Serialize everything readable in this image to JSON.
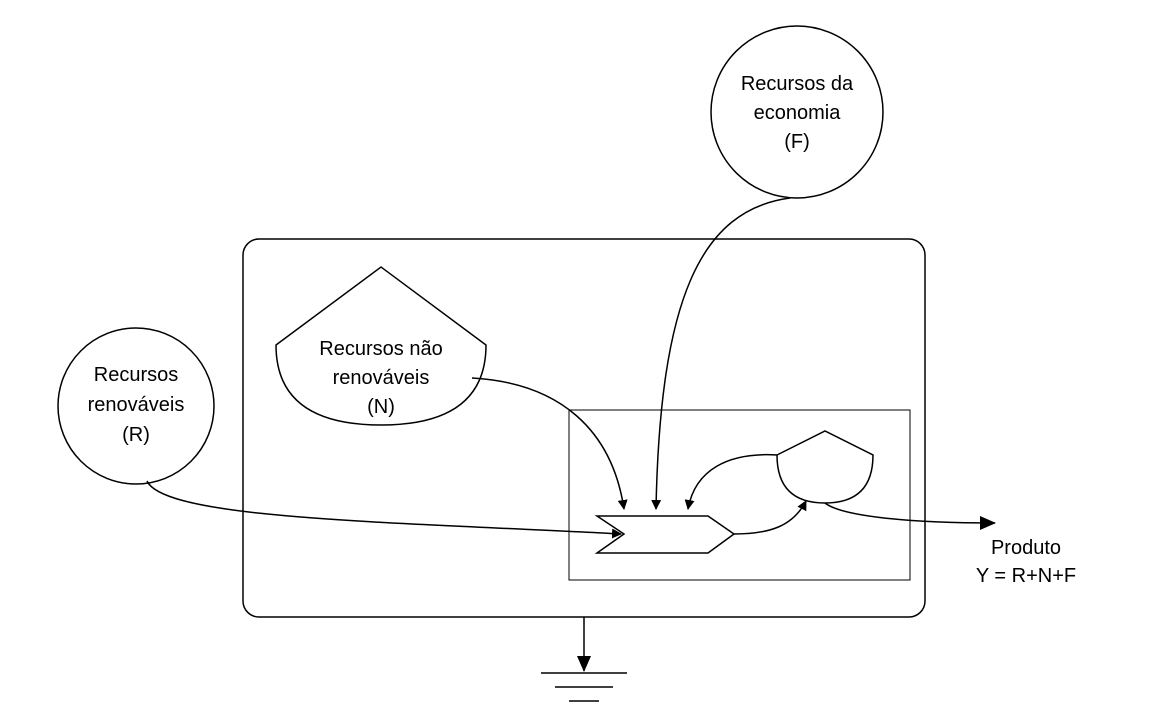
{
  "sources": {
    "renewable": {
      "lines": [
        "Recursos",
        "renováveis",
        "(R)"
      ]
    },
    "nonrenewable": {
      "lines": [
        "Recursos não",
        "renováveis",
        "(N)"
      ]
    },
    "economy": {
      "lines": [
        "Recursos da",
        "economia",
        "(F)"
      ]
    }
  },
  "output": {
    "lines": [
      "Produto",
      "Y = R+N+F"
    ]
  }
}
